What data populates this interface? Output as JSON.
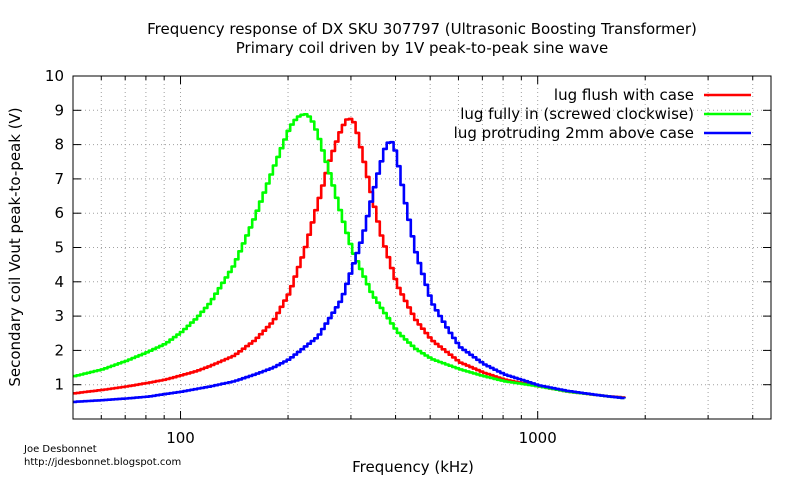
{
  "chart_data": {
    "type": "line",
    "title": "Frequency response of DX SKU 307797 (Ultrasonic Boosting Transformer)",
    "subtitle": "Primary coil driven by 1V peak-to-peak sine wave",
    "xlabel": "Frequency (kHz)",
    "ylabel": "Secondary coil Vout peak-to-peak (V)",
    "xscale": "log",
    "xlim": [
      50,
      4500
    ],
    "ylim": [
      0,
      10
    ],
    "xticks": [
      {
        "value": 100,
        "label": "100"
      },
      {
        "value": 1000,
        "label": "1000"
      }
    ],
    "yticks": [
      {
        "value": 1,
        "label": "1"
      },
      {
        "value": 2,
        "label": "2"
      },
      {
        "value": 3,
        "label": "3"
      },
      {
        "value": 4,
        "label": "4"
      },
      {
        "value": 5,
        "label": "5"
      },
      {
        "value": 6,
        "label": "6"
      },
      {
        "value": 7,
        "label": "7"
      },
      {
        "value": 8,
        "label": "8"
      },
      {
        "value": 9,
        "label": "9"
      },
      {
        "value": 10,
        "label": "10"
      }
    ],
    "grid": true,
    "legend_position": "top-right",
    "series": [
      {
        "name": "lug flush with case",
        "color": "#ff0000",
        "x": [
          50,
          60,
          70,
          80,
          90,
          100,
          110,
          120,
          140,
          160,
          180,
          200,
          220,
          240,
          260,
          280,
          290,
          298,
          305,
          320,
          340,
          360,
          400,
          450,
          500,
          600,
          700,
          800,
          1000,
          1200,
          1500,
          1750
        ],
        "y": [
          0.75,
          0.85,
          0.95,
          1.05,
          1.15,
          1.28,
          1.4,
          1.55,
          1.85,
          2.3,
          2.85,
          3.7,
          4.9,
          6.3,
          7.6,
          8.5,
          8.75,
          8.75,
          8.6,
          7.7,
          6.5,
          5.4,
          3.9,
          2.9,
          2.3,
          1.65,
          1.35,
          1.15,
          0.95,
          0.8,
          0.68,
          0.62
        ]
      },
      {
        "name": "lug fully in (screwed clockwise)",
        "color": "#00ff00",
        "x": [
          50,
          60,
          70,
          80,
          90,
          100,
          110,
          120,
          140,
          160,
          180,
          200,
          210,
          220,
          225,
          230,
          240,
          260,
          280,
          300,
          340,
          400,
          450,
          500,
          600,
          700,
          800,
          1000,
          1200,
          1500,
          1750
        ],
        "y": [
          1.25,
          1.45,
          1.7,
          1.95,
          2.2,
          2.55,
          2.95,
          3.4,
          4.5,
          5.9,
          7.3,
          8.5,
          8.8,
          8.9,
          8.85,
          8.75,
          8.3,
          7.1,
          5.9,
          4.9,
          3.65,
          2.55,
          2.05,
          1.75,
          1.45,
          1.25,
          1.1,
          0.95,
          0.8,
          0.68,
          0.6
        ]
      },
      {
        "name": "lug protruding 2mm above case",
        "color": "#0000ff",
        "x": [
          50,
          60,
          70,
          80,
          100,
          120,
          140,
          160,
          180,
          200,
          240,
          280,
          320,
          350,
          370,
          380,
          390,
          400,
          420,
          450,
          500,
          560,
          600,
          700,
          800,
          1000,
          1200,
          1500,
          1750
        ],
        "y": [
          0.5,
          0.55,
          0.6,
          0.65,
          0.8,
          0.95,
          1.1,
          1.3,
          1.5,
          1.75,
          2.4,
          3.5,
          5.3,
          7.0,
          7.9,
          8.1,
          8.05,
          7.6,
          6.4,
          4.9,
          3.4,
          2.55,
          2.1,
          1.6,
          1.3,
          0.98,
          0.82,
          0.68,
          0.6
        ]
      }
    ]
  },
  "credits": {
    "author": "Joe Desbonnet",
    "url": "http://jdesbonnet.blogspot.com"
  }
}
